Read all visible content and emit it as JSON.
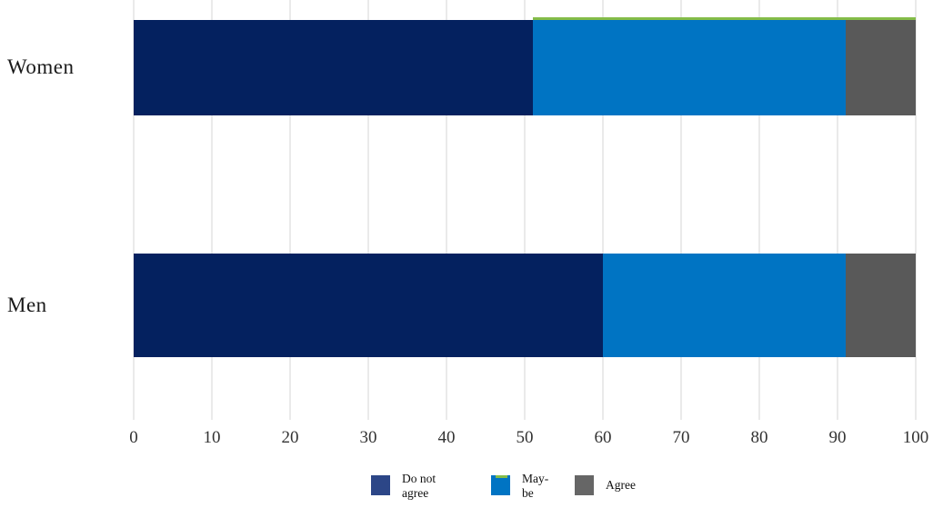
{
  "chart_data": {
    "type": "bar",
    "orientation": "horizontal",
    "stacked": true,
    "title": "",
    "xlabel": "",
    "ylabel": "",
    "categories": [
      "Women",
      "Men"
    ],
    "series": [
      {
        "name": "Do not agree",
        "values": [
          51,
          60
        ],
        "color": "#04215f"
      },
      {
        "name": "May-be",
        "values": [
          40,
          31
        ],
        "color": "#0074c3"
      },
      {
        "name": "Agree",
        "values": [
          9,
          9
        ],
        "color": "#595959"
      }
    ],
    "x_axis": {
      "min": 0,
      "max": 100,
      "tick_step": 10,
      "tick_labels": [
        "0",
        "10",
        "20",
        "30",
        "40",
        "50",
        "60",
        "70",
        "80",
        "90",
        "100"
      ]
    },
    "grid": true,
    "gridline_color": "#eaeaea",
    "legend": {
      "position": "bottom",
      "items": [
        {
          "label": "Do not agree",
          "lines": "Do not\nagree",
          "swatch_color": "#2c4687",
          "accent_top": null,
          "single_line": false
        },
        {
          "label": "May-be",
          "lines": "May-\nbe",
          "swatch_color": "#0074c3",
          "accent_top": "#84bc49",
          "single_line": false
        },
        {
          "label": "Agree",
          "lines": "Agree",
          "swatch_color": "#666666",
          "accent_top": null,
          "single_line": true
        }
      ]
    },
    "annotations": {
      "green_accent_line": {
        "row": "Women",
        "from": 51,
        "to": 100,
        "color": "#84bc49",
        "note": "thin green line along the top edge of the Women bar, spanning the May-be and Agree segments"
      }
    }
  },
  "colors": {
    "background": "#ffffff",
    "category_label": "#1a1a1a",
    "axis_label": "#333333",
    "gridline": "#eaeaea"
  }
}
